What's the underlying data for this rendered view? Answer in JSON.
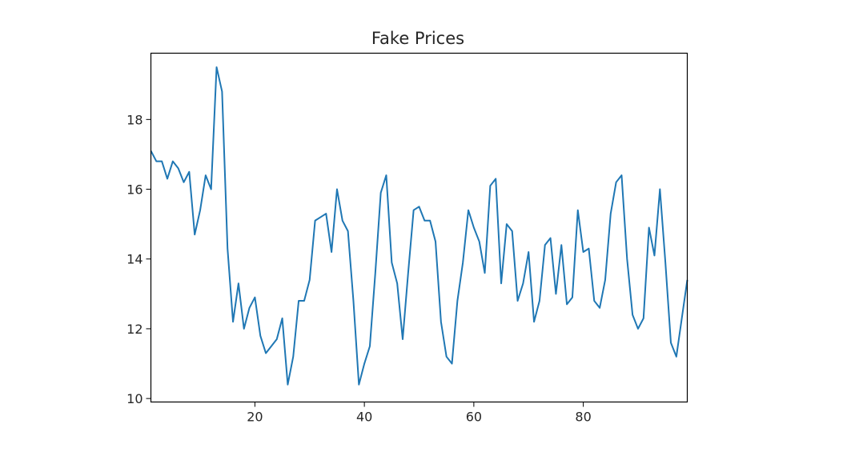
{
  "chart_data": {
    "type": "line",
    "title": "Fake Prices",
    "xlabel": "",
    "ylabel": "",
    "xlim": [
      1,
      99
    ],
    "ylim": [
      9.9,
      19.9
    ],
    "x_ticks": [
      20,
      40,
      60,
      80
    ],
    "y_ticks": [
      10,
      12,
      14,
      16,
      18
    ],
    "grid": false,
    "series": [
      {
        "color": "#1f77b4",
        "x": [
          1,
          2,
          3,
          4,
          5,
          6,
          7,
          8,
          9,
          10,
          11,
          12,
          13,
          14,
          15,
          16,
          17,
          18,
          19,
          20,
          21,
          22,
          23,
          24,
          25,
          26,
          27,
          28,
          29,
          30,
          31,
          32,
          33,
          34,
          35,
          36,
          37,
          38,
          39,
          40,
          41,
          42,
          43,
          44,
          45,
          46,
          47,
          48,
          49,
          50,
          51,
          52,
          53,
          54,
          55,
          56,
          57,
          58,
          59,
          60,
          61,
          62,
          63,
          64,
          65,
          66,
          67,
          68,
          69,
          70,
          71,
          72,
          73,
          74,
          75,
          76,
          77,
          78,
          79,
          80,
          81,
          82,
          83,
          84,
          85,
          86,
          87,
          88,
          89,
          90,
          91,
          92,
          93,
          94,
          95,
          96,
          97,
          98,
          99
        ],
        "values": [
          17.1,
          16.8,
          16.8,
          16.3,
          16.8,
          16.6,
          16.2,
          16.5,
          14.7,
          15.4,
          16.4,
          16.0,
          19.5,
          18.8,
          14.3,
          12.2,
          13.3,
          12.0,
          12.6,
          12.9,
          11.8,
          11.3,
          11.5,
          11.7,
          12.3,
          10.4,
          11.2,
          12.8,
          12.8,
          13.4,
          15.1,
          15.2,
          15.3,
          14.2,
          16.0,
          15.1,
          14.8,
          12.8,
          10.4,
          11.0,
          11.5,
          13.6,
          15.9,
          16.4,
          13.9,
          13.3,
          11.7,
          13.6,
          15.4,
          15.5,
          15.1,
          15.1,
          14.5,
          12.2,
          11.2,
          11.0,
          12.8,
          13.9,
          15.4,
          14.9,
          14.5,
          13.6,
          16.1,
          16.3,
          13.3,
          15.0,
          14.8,
          12.8,
          13.3,
          14.2,
          12.2,
          12.8,
          14.4,
          14.6,
          13.0,
          14.4,
          12.7,
          12.9,
          15.4,
          14.2,
          14.3,
          12.8,
          12.6,
          13.4,
          15.3,
          16.2,
          16.4,
          14.0,
          12.4,
          12.0,
          12.3,
          14.9,
          14.1,
          16.0,
          13.9,
          11.6,
          11.2,
          12.3,
          13.4
        ]
      }
    ]
  }
}
